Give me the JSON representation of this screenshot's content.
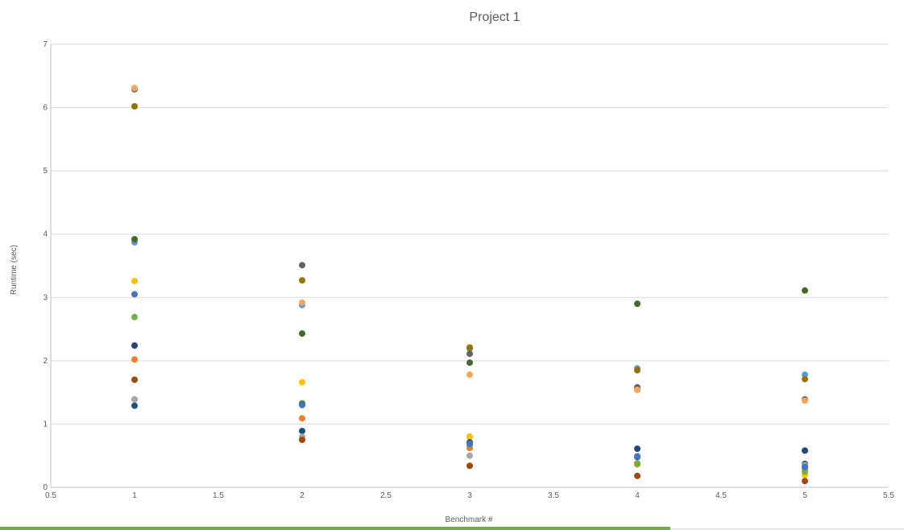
{
  "chart_data": {
    "type": "scatter",
    "title": "Project 1",
    "xlabel": "Benchmark #",
    "ylabel": "Runtime (sec)",
    "xlim": [
      0.5,
      5.5
    ],
    "ylim": [
      0,
      7
    ],
    "x_ticks": [
      "0.5",
      "1",
      "1.5",
      "2",
      "2.5",
      "3",
      "3.5",
      "4",
      "4.5",
      "5",
      "5.5"
    ],
    "y_ticks": [
      "0",
      "1",
      "2",
      "3",
      "4",
      "5",
      "6",
      "7"
    ],
    "grid": "horizontal",
    "legend": "none",
    "series": [
      {
        "color": "#1F4E79",
        "points": [
          [
            1,
            1.29
          ],
          [
            2,
            0.89
          ],
          [
            3,
            0.8
          ],
          [
            4,
            0.48
          ],
          [
            5,
            0.37
          ]
        ]
      },
      {
        "color": "#ED7D31",
        "points": [
          [
            1,
            2.02
          ],
          [
            2,
            1.09
          ],
          [
            3,
            0.62
          ],
          [
            4,
            0.38
          ],
          [
            5,
            0.3
          ]
        ]
      },
      {
        "color": "#A5A5A5",
        "points": [
          [
            1,
            1.39
          ],
          [
            2,
            0.8
          ],
          [
            3,
            0.5
          ],
          [
            4,
            0.37
          ],
          [
            5,
            0.35
          ]
        ]
      },
      {
        "color": "#FFC000",
        "points": [
          [
            1,
            3.26
          ],
          [
            2,
            1.66
          ],
          [
            3,
            0.8
          ],
          [
            4,
            0.36
          ],
          [
            5,
            0.2
          ]
        ]
      },
      {
        "color": "#5B9BD5",
        "points": [
          [
            1,
            3.87
          ],
          [
            2,
            2.88
          ],
          [
            3,
            2.19
          ],
          [
            4,
            1.88
          ],
          [
            5,
            1.78
          ]
        ]
      },
      {
        "color": "#70AD47",
        "points": [
          [
            1,
            2.69
          ],
          [
            2,
            1.33
          ],
          [
            3,
            0.67
          ],
          [
            4,
            0.37
          ],
          [
            5,
            0.25
          ]
        ]
      },
      {
        "color": "#264478",
        "points": [
          [
            1,
            2.24
          ],
          [
            2,
            1.31
          ],
          [
            3,
            0.71
          ],
          [
            4,
            0.61
          ],
          [
            5,
            0.58
          ]
        ]
      },
      {
        "color": "#9E480E",
        "points": [
          [
            1,
            1.7
          ],
          [
            2,
            0.75
          ],
          [
            3,
            0.34
          ],
          [
            4,
            0.18
          ],
          [
            5,
            0.1
          ]
        ]
      },
      {
        "color": "#636363",
        "points": [
          [
            1,
            6.29
          ],
          [
            2,
            3.51
          ],
          [
            3,
            2.11
          ],
          [
            4,
            1.58
          ],
          [
            5,
            1.39
          ]
        ]
      },
      {
        "color": "#997300",
        "points": [
          [
            1,
            6.02
          ],
          [
            2,
            3.27
          ],
          [
            3,
            2.21
          ],
          [
            4,
            1.85
          ],
          [
            5,
            1.71
          ]
        ]
      },
      {
        "color": "#4472C4",
        "points": [
          [
            1,
            3.05
          ],
          [
            2,
            1.3
          ],
          [
            3,
            0.69
          ],
          [
            4,
            0.49
          ],
          [
            5,
            0.32
          ]
        ]
      },
      {
        "color": "#43682B",
        "points": [
          [
            1,
            3.92
          ],
          [
            2,
            2.43
          ],
          [
            3,
            1.97
          ],
          [
            4,
            2.9
          ],
          [
            5,
            3.11
          ]
        ]
      },
      {
        "color": "#F4A460",
        "points": [
          [
            1,
            6.31
          ],
          [
            2,
            2.92
          ],
          [
            3,
            1.78
          ],
          [
            4,
            1.54
          ],
          [
            5,
            1.37
          ]
        ]
      }
    ]
  },
  "colors": {
    "grid": "#d9d9d9",
    "axis": "#bfbfbf",
    "text": "#595959",
    "bottom_bar": "#70AD47"
  }
}
